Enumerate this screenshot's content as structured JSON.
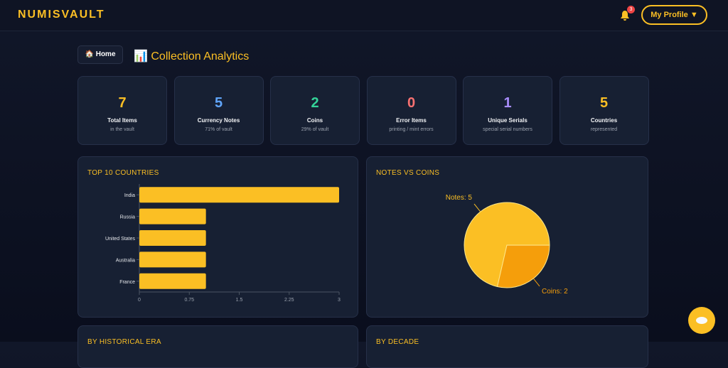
{
  "header": {
    "brand": "NUMISVAULT",
    "notifications": 3,
    "profile": "My Profile ▼"
  },
  "breadcrumb": {
    "home_icon": "🏠",
    "home": "Home",
    "title_icon": "📊",
    "title": "Collection Analytics"
  },
  "stats": [
    {
      "value": 7,
      "label": "Total Items",
      "note": "in the vault",
      "color": "#fbbf24"
    },
    {
      "value": 5,
      "label": "Currency Notes",
      "note": "71% of vault",
      "color": "#60a5fa"
    },
    {
      "value": 2,
      "label": "Coins",
      "note": "29% of vault",
      "color": "#34d399"
    },
    {
      "value": 0,
      "label": "Error Items",
      "note": "printing / mint errors",
      "color": "#f87171"
    },
    {
      "value": 1,
      "label": "Unique Serials",
      "note": "special serial numbers",
      "color": "#a78bfa"
    },
    {
      "value": 5,
      "label": "Countries",
      "note": "represented",
      "color": "#fbbf24"
    }
  ],
  "chart_data": [
    {
      "type": "bar",
      "orientation": "horizontal",
      "title": "TOP 10 COUNTRIES",
      "categories": [
        "India",
        "Russia",
        "United States",
        "Australia",
        "France"
      ],
      "values": [
        3,
        1,
        1,
        1,
        1
      ],
      "color": "#fbbf24",
      "xlim": [
        0,
        3
      ],
      "xticks": [
        0,
        0.75,
        1.5,
        2.25,
        3
      ]
    },
    {
      "type": "pie",
      "title": "NOTES VS COINS",
      "categories": [
        "Notes",
        "Coins"
      ],
      "values": [
        5,
        2
      ],
      "value_labels": [
        "Notes: 5",
        "Coins: 2"
      ],
      "colors": [
        "#fbbf24",
        "#f59e0b"
      ]
    }
  ],
  "sections": [
    "BY HISTORICAL ERA",
    "BY DECADE"
  ]
}
